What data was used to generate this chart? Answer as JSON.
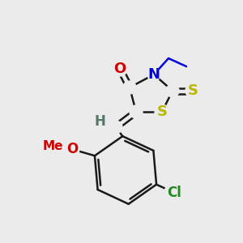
{
  "background_color": "#ebebeb",
  "bond_color": "#1a1a1a",
  "bond_width": 1.8,
  "figsize": [
    3.0,
    3.0
  ],
  "dpi": 100,
  "colors": {
    "S": "#b8b800",
    "N": "#0000dd",
    "O": "#cc0000",
    "Cl": "#228822",
    "H": "#557766",
    "C": "#1a1a1a",
    "Et_line": "#0000dd"
  }
}
